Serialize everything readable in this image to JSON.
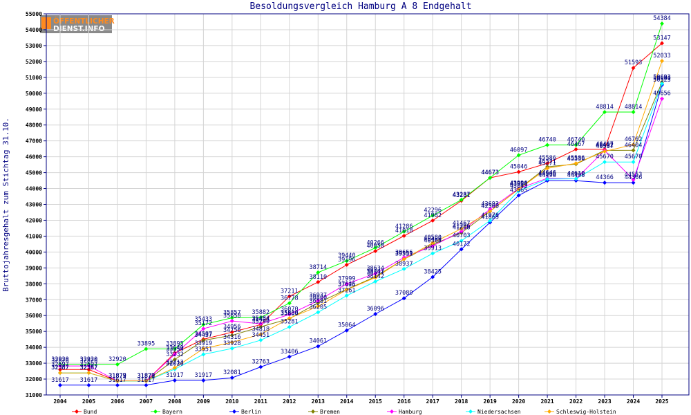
{
  "logo": {
    "line1": "ÖFFENTLICHER",
    "line2": "DIENST.INFO"
  },
  "chart_data": {
    "type": "line",
    "title": "Besoldungsvergleich Hamburg A 8 Endgehalt",
    "ylabel": "Bruttojahresgehalt zum Stichtag 31.10.",
    "xlabel": "",
    "ylim": [
      31000,
      55000
    ],
    "y_ticks": [
      31000,
      32000,
      33000,
      34000,
      35000,
      36000,
      37000,
      38000,
      39000,
      40000,
      41000,
      42000,
      43000,
      44000,
      45000,
      46000,
      47000,
      48000,
      49000,
      50000,
      51000,
      52000,
      53000,
      54000,
      55000
    ],
    "x": [
      "2004",
      "2005",
      "2006",
      "2007",
      "2008",
      "2009",
      "2010",
      "2011",
      "2012",
      "2013",
      "2014",
      "2015",
      "2016",
      "2017",
      "2018",
      "2019",
      "2020",
      "2021",
      "2022",
      "2023",
      "2024",
      "2025"
    ],
    "grid": true,
    "legend_position": "bottom",
    "series": [
      {
        "name": "Bund",
        "color": "#ff0000",
        "values": [
          32597,
          32597,
          31873,
          31873,
          33640,
          34507,
          34956,
          35428,
          37211,
          38110,
          39196,
          40058,
          41018,
          41982,
          43231,
          44673,
          45046,
          45586,
          46467,
          46467,
          51593,
          53147
        ]
      },
      {
        "name": "Bayern",
        "color": "#00ff00",
        "values": [
          32920,
          32920,
          32920,
          33895,
          33895,
          35433,
          35857,
          35882,
          36778,
          38714,
          39440,
          40266,
          41286,
          42296,
          43287,
          44673,
          46097,
          46740,
          46740,
          48814,
          48814,
          54384
        ]
      },
      {
        "name": "Berlin",
        "color": "#0000ff",
        "values": [
          31617,
          31617,
          31617,
          31617,
          31917,
          31917,
          32081,
          32763,
          33406,
          34061,
          35064,
          36096,
          37089,
          38425,
          40172,
          41865,
          43565,
          44496,
          44496,
          44366,
          44366,
          50523
        ]
      },
      {
        "name": "Bremen",
        "color": "#808000",
        "values": [
          32387,
          32387,
          31877,
          31877,
          33232,
          34437,
          34756,
          35290,
          35800,
          36800,
          37645,
          38442,
          39551,
          40480,
          41208,
          42563,
          43966,
          45371,
          45536,
          46402,
          46404,
          50693
        ]
      },
      {
        "name": "Hamburg",
        "color": "#ff00ff",
        "values": [
          32826,
          32826,
          31879,
          31879,
          33554,
          35172,
          35658,
          35484,
          36070,
          36937,
          37999,
          38634,
          39656,
          40388,
          41296,
          42693,
          43996,
          44646,
          44610,
          46402,
          44553,
          49656
        ]
      },
      {
        "name": "Niedersachsen",
        "color": "#00ffff",
        "values": [
          32387,
          32387,
          31872,
          31872,
          32626,
          33551,
          33928,
          34451,
          35281,
          36205,
          37261,
          38142,
          38937,
          39913,
          40703,
          41978,
          43845,
          44595,
          44610,
          45670,
          45670,
          50600
        ]
      },
      {
        "name": "Schleswig-Holstein",
        "color": "#ffaa00",
        "values": [
          32387,
          32387,
          31879,
          31879,
          32713,
          33919,
          34316,
          34818,
          35830,
          36581,
          37626,
          38391,
          39551,
          40580,
          41467,
          42560,
          43958,
          45271,
          45586,
          46337,
          46762,
          52033
        ]
      }
    ]
  }
}
